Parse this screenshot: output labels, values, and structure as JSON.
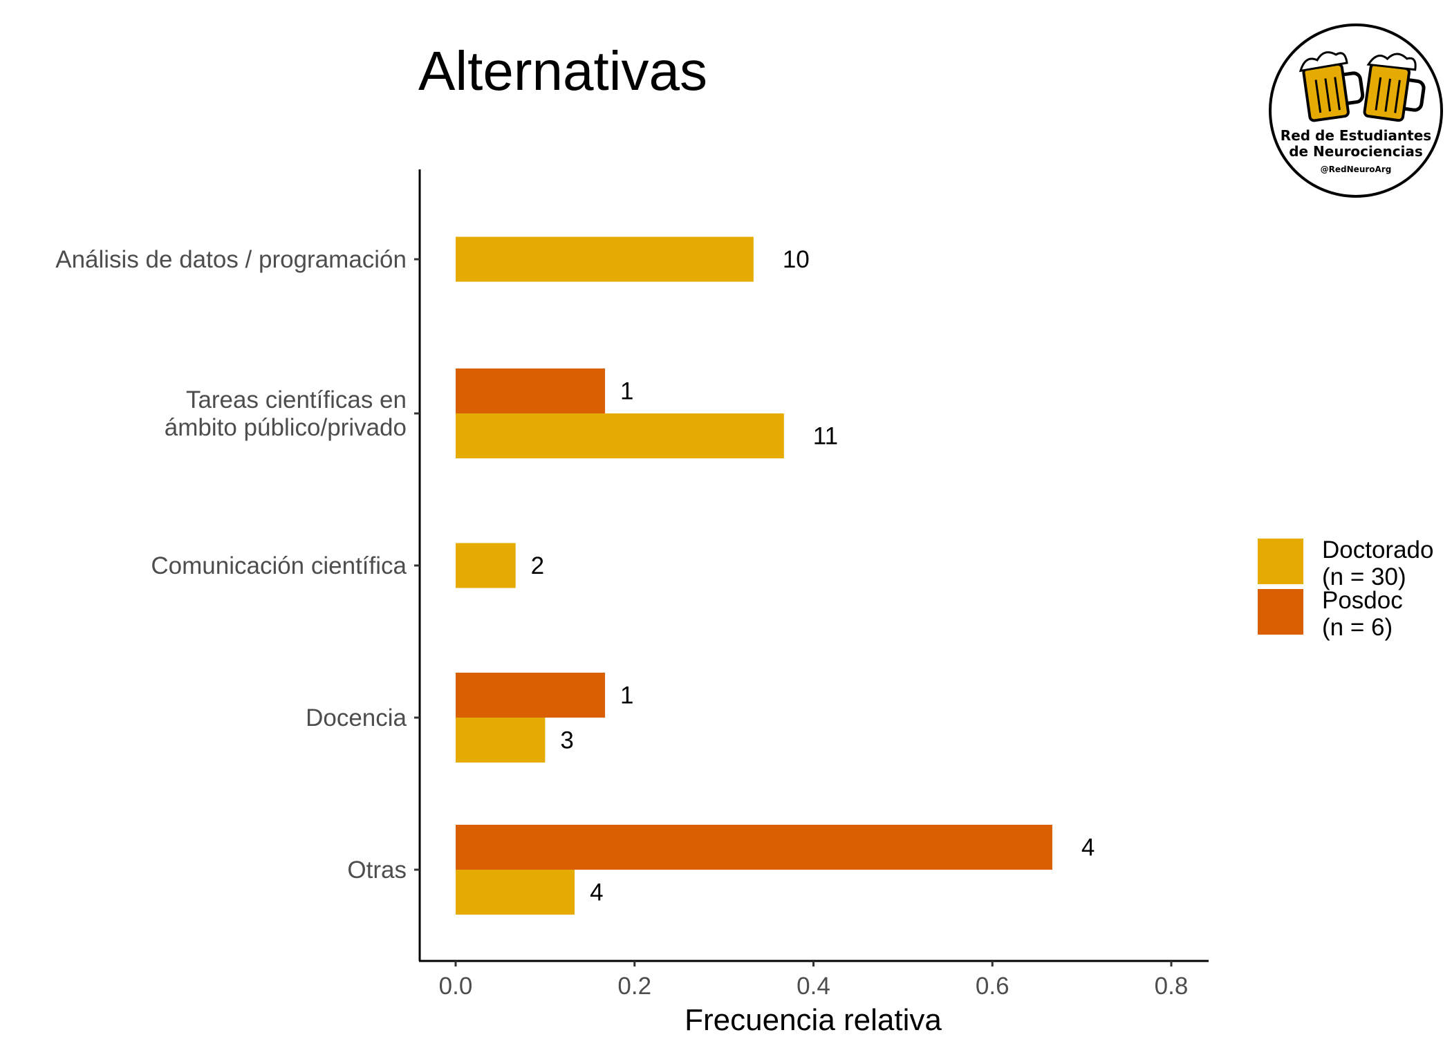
{
  "chart_data": {
    "type": "bar",
    "orientation": "horizontal",
    "title": "Alternativas",
    "xlabel": "Frecuencia relativa",
    "ylabel": "",
    "xlim": [
      0,
      0.8
    ],
    "xticks": [
      "0.0",
      "0.2",
      "0.4",
      "0.6",
      "0.8"
    ],
    "grid": false,
    "legend_position": "right",
    "categories": [
      [
        "Análisis de datos / programación"
      ],
      [
        "Tareas científicas en",
        "ámbito público/privado"
      ],
      [
        "Comunicación científica"
      ],
      [
        "Docencia"
      ],
      [
        "Otras"
      ]
    ],
    "series": [
      {
        "name": [
          "Doctorado",
          "(n = 30)"
        ],
        "color": "#E6AB02",
        "values": [
          0.333,
          0.367,
          0.067,
          0.1,
          0.133
        ],
        "labels": [
          "10",
          "11",
          "2",
          "3",
          "4"
        ]
      },
      {
        "name": [
          "Posdoc",
          "(n = 6)"
        ],
        "color": "#D95F02",
        "values": [
          null,
          0.167,
          null,
          0.167,
          0.667
        ],
        "labels": [
          null,
          "1",
          null,
          "1",
          "4"
        ]
      }
    ]
  },
  "logo": {
    "line1": "Red de Estudiantes",
    "line2": "de Neurociencias",
    "handle": "@RedNeuroArg",
    "mug_color": "#E6AB02"
  }
}
